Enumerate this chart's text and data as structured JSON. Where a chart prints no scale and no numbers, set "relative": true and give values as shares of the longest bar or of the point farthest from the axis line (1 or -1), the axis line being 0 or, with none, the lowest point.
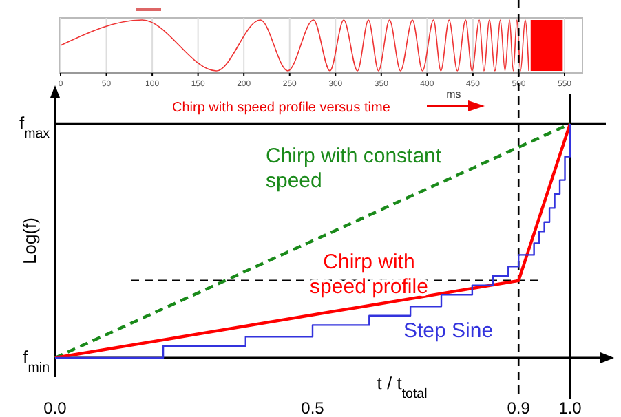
{
  "chart_data": [
    {
      "type": "line",
      "xlabel": "ms",
      "relative": true,
      "xlim": [
        0,
        550
      ],
      "xticks": [
        0,
        50,
        100,
        150,
        200,
        250,
        300,
        350,
        400,
        450,
        500,
        550
      ],
      "grid": "x",
      "marker": "none",
      "series": [
        {
          "color": "#ee3333",
          "line_style": "solid",
          "x": [
            0,
            89,
            170,
            218,
            248,
            276,
            294,
            309,
            324,
            336,
            347,
            359,
            371,
            384,
            395,
            407,
            415,
            424,
            433,
            442,
            449,
            457,
            462,
            468,
            474,
            480,
            485,
            490,
            494,
            498,
            502,
            507,
            511
          ],
          "values": [
            0.5,
            1,
            0,
            1,
            0,
            1,
            0,
            1,
            0,
            1,
            0,
            1,
            0,
            1,
            0,
            1,
            0,
            1,
            0,
            1,
            0,
            1,
            0,
            1,
            0,
            1,
            0,
            1,
            0,
            1,
            0,
            1,
            0
          ]
        }
      ],
      "bands": [
        {
          "axis": "x",
          "from": 513,
          "to": 548,
          "color": "#ff0000"
        }
      ]
    },
    {
      "type": "line",
      "xlabel": "t / t$_{total}$",
      "ylabel": "Log(f)",
      "relative": true,
      "xlim": [
        0,
        1
      ],
      "xticks": [
        {
          "value": 0,
          "label": "0.0"
        },
        0.5,
        0.9,
        {
          "value": 1,
          "label": "1.0"
        }
      ],
      "grid": false,
      "marker": "none",
      "series": [
        {
          "name": "Chirp with constant speed",
          "color": "#1a8a1a",
          "line_style": "dashed",
          "x": [
            0,
            1
          ],
          "values": [
            0,
            1
          ]
        },
        {
          "name": "Chirp with speed profile",
          "color": "#ff0000",
          "line_style": "solid",
          "x": [
            0,
            0.9,
            1
          ],
          "values": [
            0,
            0.33,
            1
          ]
        },
        {
          "name": "Step Sine",
          "type": "step",
          "color": "#3333dd",
          "line_style": "solid",
          "x": [
            0,
            0.21,
            0.37,
            0.5,
            0.61,
            0.69,
            0.75,
            0.81,
            0.85,
            0.88,
            0.9,
            0.93,
            0.94,
            0.95,
            0.96,
            0.97,
            0.98,
            0.99,
            1
          ],
          "values": [
            0,
            0.05,
            0.09,
            0.14,
            0.18,
            0.22,
            0.27,
            0.31,
            0.35,
            0.39,
            0.44,
            0.49,
            0.54,
            0.58,
            0.64,
            0.7,
            0.76,
            0.86,
            1
          ]
        }
      ],
      "ref_lines": [
        {
          "axis": "y",
          "value": 1,
          "color": "#000000",
          "line_style": "solid"
        },
        {
          "axis": "y",
          "value": 0.33,
          "color": "#000000",
          "line_style": "dashed"
        },
        {
          "axis": "x",
          "value": 0.9,
          "color": "#000000",
          "line_style": "dashed"
        },
        {
          "axis": "x",
          "value": 1,
          "color": "#000000",
          "line_style": "solid"
        }
      ],
      "annotations": [
        {
          "text": "f$_{max}$",
          "x": 0,
          "y": 1
        },
        {
          "text": "f$_{min}$",
          "x": 0,
          "y": 0
        },
        "Chirp with speed profile versus time"
      ]
    }
  ]
}
